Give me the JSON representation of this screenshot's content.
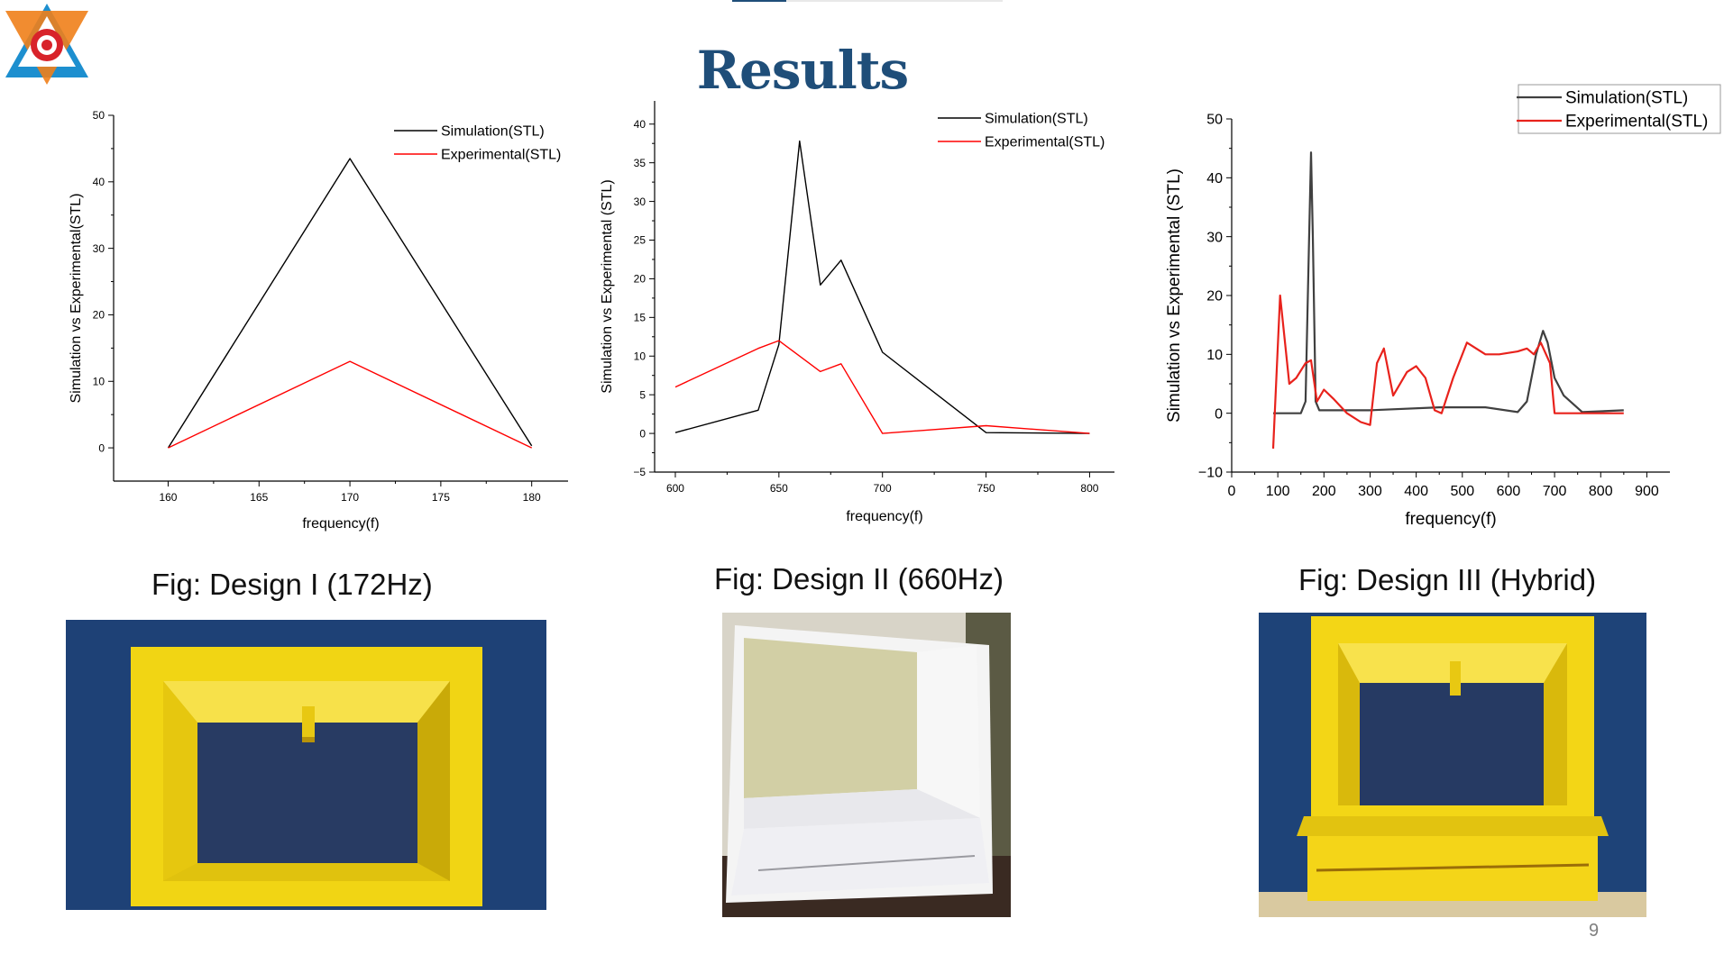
{
  "slide": {
    "title": "Results",
    "page_number": "9",
    "theme_color": "#1f4e79"
  },
  "captions": {
    "design1": "Fig: Design I (172Hz)",
    "design2": "Fig: Design II (660Hz)",
    "design3": "Fig: Design III (Hybrid)"
  },
  "photos": [
    {
      "subject": "yellow 3D-printed frame, Design I",
      "colors": {
        "background": "#1d3f74",
        "part": "#f1d514"
      }
    },
    {
      "subject": "white 3D-printed frame, Design II",
      "colors": {
        "background": "#d8d4c8",
        "part": "#f4f4f4"
      }
    },
    {
      "subject": "yellow 3D-printed frame, Design III",
      "colors": {
        "background": "#1e4378",
        "part": "#f3d616"
      }
    }
  ],
  "chart_data": [
    {
      "type": "line",
      "xlabel": "frequency(f)",
      "ylabel": "Simulation vs Experimental(STL)",
      "xlim": [
        157,
        182
      ],
      "ylim": [
        -5,
        50
      ],
      "xticks": [
        160,
        165,
        170,
        175,
        180
      ],
      "yticks": [
        0,
        10,
        20,
        30,
        40,
        50
      ],
      "legend_position": "top-right",
      "series": [
        {
          "name": "Simulation(STL)",
          "color": "#000000",
          "x": [
            160,
            170,
            180
          ],
          "y": [
            0,
            43.5,
            0.3
          ]
        },
        {
          "name": "Experimental(STL)",
          "color": "#ff0000",
          "x": [
            160,
            170,
            180
          ],
          "y": [
            0,
            13,
            0
          ]
        }
      ]
    },
    {
      "type": "line",
      "xlabel": "frequency(f)",
      "ylabel": "Simulation vs Experimental (STL)",
      "xlim": [
        590,
        812
      ],
      "ylim": [
        -5,
        43
      ],
      "xticks": [
        600,
        650,
        700,
        750,
        800
      ],
      "yticks": [
        -5,
        0,
        5,
        10,
        15,
        20,
        25,
        30,
        35,
        40
      ],
      "legend_position": "top-right",
      "series": [
        {
          "name": "Simulation(STL)",
          "color": "#000000",
          "x": [
            600,
            640,
            650,
            660,
            670,
            680,
            700,
            750,
            800
          ],
          "y": [
            0.1,
            3,
            11.5,
            37.8,
            19.2,
            22.4,
            10.5,
            0.1,
            0
          ]
        },
        {
          "name": "Experimental(STL)",
          "color": "#ff0000",
          "x": [
            600,
            640,
            650,
            670,
            680,
            700,
            750,
            800
          ],
          "y": [
            6,
            11,
            12,
            8,
            9,
            0,
            1,
            0
          ]
        }
      ]
    },
    {
      "type": "line",
      "xlabel": "frequency(f)",
      "ylabel": "Simulation vs Experimental (STL)",
      "xlim": [
        0,
        950
      ],
      "ylim": [
        -10,
        50
      ],
      "xticks": [
        0,
        100,
        200,
        300,
        400,
        500,
        600,
        700,
        800,
        900
      ],
      "yticks": [
        -10,
        0,
        10,
        20,
        30,
        40,
        50
      ],
      "legend_position": "top-right",
      "series": [
        {
          "name": "Simulation(STL)",
          "color": "#404040",
          "x": [
            90,
            150,
            160,
            168,
            172,
            176,
            182,
            190,
            300,
            450,
            550,
            620,
            640,
            660,
            675,
            685,
            700,
            720,
            760,
            850
          ],
          "y": [
            0,
            0,
            2,
            30,
            44.3,
            30,
            2,
            0.5,
            0.5,
            1,
            1,
            0.2,
            2,
            10,
            14,
            12,
            6,
            3,
            0.2,
            0.5
          ]
        },
        {
          "name": "Experimental(STL)",
          "color": "#e8221c",
          "x": [
            90,
            105,
            125,
            140,
            160,
            172,
            185,
            200,
            220,
            250,
            280,
            300,
            315,
            330,
            350,
            380,
            400,
            420,
            440,
            455,
            480,
            510,
            550,
            580,
            620,
            640,
            655,
            670,
            690,
            700,
            720,
            850
          ],
          "y": [
            -6,
            20,
            5,
            6,
            8.5,
            9,
            2,
            4,
            2.5,
            0,
            -1.5,
            -2,
            8.5,
            11,
            3,
            7,
            8,
            6,
            0.5,
            0,
            6,
            12,
            10,
            10,
            10.5,
            11,
            10,
            12,
            8.5,
            0,
            0,
            0
          ]
        }
      ]
    }
  ]
}
